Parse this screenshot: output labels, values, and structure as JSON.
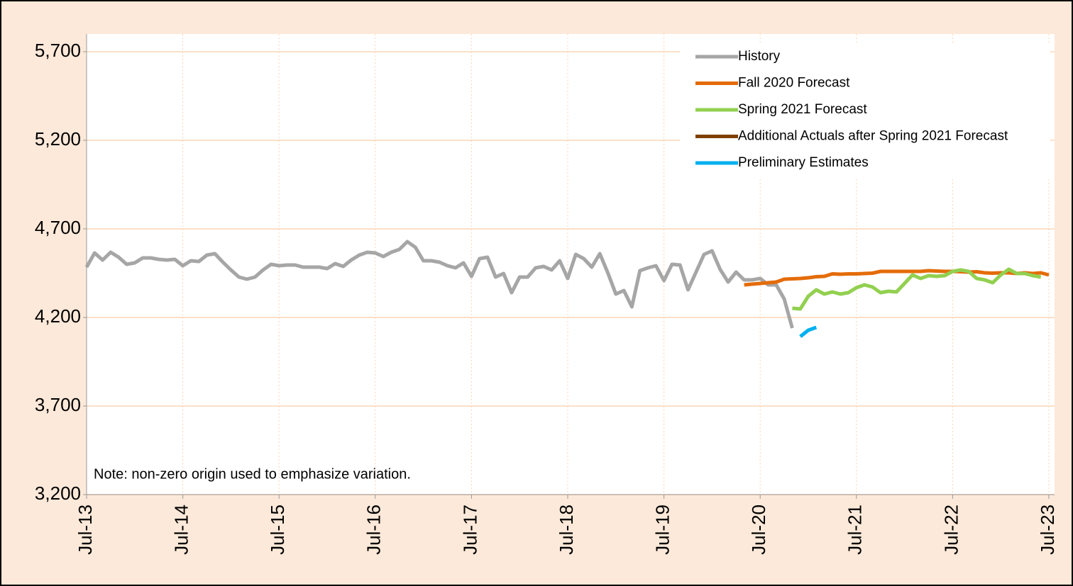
{
  "chart_data": {
    "type": "line",
    "annotation": "Note: non-zero origin used to emphasize variation.",
    "categories": [
      "Jul-13",
      null,
      null,
      null,
      null,
      null,
      null,
      null,
      null,
      null,
      null,
      null,
      "Jul-14",
      null,
      null,
      null,
      null,
      null,
      null,
      null,
      null,
      null,
      null,
      null,
      "Jul-15",
      null,
      null,
      null,
      null,
      null,
      null,
      null,
      null,
      null,
      null,
      null,
      "Jul-16",
      null,
      null,
      null,
      null,
      null,
      null,
      null,
      null,
      null,
      null,
      null,
      "Jul-17",
      null,
      null,
      null,
      null,
      null,
      null,
      null,
      null,
      null,
      null,
      null,
      "Jul-18",
      null,
      null,
      null,
      null,
      null,
      null,
      null,
      null,
      null,
      null,
      null,
      "Jul-19",
      null,
      null,
      null,
      null,
      null,
      null,
      null,
      null,
      null,
      null,
      null,
      "Jul-20",
      null,
      null,
      null,
      null,
      null,
      null,
      null,
      null,
      null,
      null,
      null,
      "Jul-21",
      null,
      null,
      null,
      null,
      null,
      null,
      null,
      null,
      null,
      null,
      null,
      "Jul-22",
      null,
      null,
      null,
      null,
      null,
      null,
      null,
      null,
      null,
      null,
      null,
      "Jul-23"
    ],
    "ylim": [
      3200,
      5800
    ],
    "yticks": [
      {
        "value": 3200,
        "label": "3,200"
      },
      {
        "value": 3700,
        "label": "3,700"
      },
      {
        "value": 4200,
        "label": "4,200"
      },
      {
        "value": 4700,
        "label": "4,700"
      },
      {
        "value": 5200,
        "label": "5,200"
      },
      {
        "value": 5700,
        "label": "5,700"
      }
    ],
    "grid": true,
    "legend": "upper right",
    "series": [
      {
        "name": "History",
        "color": "#a6a6a6",
        "values": [
          4484,
          4564,
          4524,
          4568,
          4540,
          4500,
          4508,
          4536,
          4536,
          4528,
          4524,
          4528,
          4492,
          4520,
          4516,
          4552,
          4560,
          4512,
          4468,
          4428,
          4416,
          4428,
          4468,
          4500,
          4492,
          4496,
          4496,
          4484,
          4484,
          4484,
          4476,
          4504,
          4488,
          4524,
          4552,
          4568,
          4564,
          4544,
          4568,
          4584,
          4628,
          4596,
          4520,
          4520,
          4512,
          4492,
          4480,
          4508,
          4432,
          4532,
          4540,
          4428,
          4448,
          4340,
          4428,
          4428,
          4480,
          4488,
          4468,
          4520,
          4420,
          4556,
          4532,
          4484,
          4560,
          4452,
          4332,
          4352,
          4260,
          4464,
          4480,
          4492,
          4408,
          4500,
          4496,
          4356,
          4456,
          4556,
          4576,
          4472,
          4400,
          4456,
          4412,
          4412,
          4420,
          4384,
          4384,
          4304,
          4140,
          null,
          null,
          null,
          null,
          null,
          null,
          null,
          null,
          null,
          null,
          null,
          null,
          null,
          null,
          null,
          null,
          null,
          null,
          null,
          null,
          null,
          null,
          null,
          null,
          null,
          null,
          null,
          null,
          null,
          null,
          null,
          null
        ]
      },
      {
        "name": "Fall 2020 Forecast",
        "color": "#e46c0a",
        "values": [
          null,
          null,
          null,
          null,
          null,
          null,
          null,
          null,
          null,
          null,
          null,
          null,
          null,
          null,
          null,
          null,
          null,
          null,
          null,
          null,
          null,
          null,
          null,
          null,
          null,
          null,
          null,
          null,
          null,
          null,
          null,
          null,
          null,
          null,
          null,
          null,
          null,
          null,
          null,
          null,
          null,
          null,
          null,
          null,
          null,
          null,
          null,
          null,
          null,
          null,
          null,
          null,
          null,
          null,
          null,
          null,
          null,
          null,
          null,
          null,
          null,
          null,
          null,
          null,
          null,
          null,
          null,
          null,
          null,
          null,
          null,
          null,
          null,
          null,
          null,
          null,
          null,
          null,
          null,
          null,
          null,
          null,
          4384,
          4388,
          4392,
          4396,
          4400,
          4416,
          4418,
          4420,
          4424,
          4430,
          4432,
          4446,
          4444,
          4446,
          4446,
          4448,
          4450,
          4460,
          4460,
          4460,
          4460,
          4460,
          4460,
          4464,
          4462,
          4460,
          4460,
          4458,
          4456,
          4458,
          4452,
          4450,
          4452,
          4452,
          4448,
          4452,
          4448,
          4452,
          4440
        ]
      },
      {
        "name": "Spring 2021 Forecast",
        "color": "#92d050",
        "values": [
          null,
          null,
          null,
          null,
          null,
          null,
          null,
          null,
          null,
          null,
          null,
          null,
          null,
          null,
          null,
          null,
          null,
          null,
          null,
          null,
          null,
          null,
          null,
          null,
          null,
          null,
          null,
          null,
          null,
          null,
          null,
          null,
          null,
          null,
          null,
          null,
          null,
          null,
          null,
          null,
          null,
          null,
          null,
          null,
          null,
          null,
          null,
          null,
          null,
          null,
          null,
          null,
          null,
          null,
          null,
          null,
          null,
          null,
          null,
          null,
          null,
          null,
          null,
          null,
          null,
          null,
          null,
          null,
          null,
          null,
          null,
          null,
          null,
          null,
          null,
          null,
          null,
          null,
          null,
          null,
          null,
          null,
          null,
          null,
          null,
          null,
          null,
          null,
          4252,
          4248,
          4320,
          4356,
          4332,
          4344,
          4332,
          4340,
          4368,
          4384,
          4372,
          4340,
          4348,
          4344,
          4392,
          4440,
          4420,
          4436,
          4432,
          4436,
          4460,
          4468,
          4460,
          4420,
          4412,
          4396,
          4440,
          4472,
          4448,
          4448,
          4436,
          4428,
          null
        ]
      },
      {
        "name": "Additional Actuals after Spring 2021 Forecast",
        "color": "#7f3f00",
        "values": [
          null,
          null,
          null,
          null,
          null,
          null,
          null,
          null,
          null,
          null,
          null,
          null,
          null,
          null,
          null,
          null,
          null,
          null,
          null,
          null,
          null,
          null,
          null,
          null,
          null,
          null,
          null,
          null,
          null,
          null,
          null,
          null,
          null,
          null,
          null,
          null,
          null,
          null,
          null,
          null,
          null,
          null,
          null,
          null,
          null,
          null,
          null,
          null,
          null,
          null,
          null,
          null,
          null,
          null,
          null,
          null,
          null,
          null,
          null,
          null,
          null,
          null,
          null,
          null,
          null,
          null,
          null,
          null,
          null,
          null,
          null,
          null,
          null,
          null,
          null,
          null,
          null,
          null,
          null,
          null,
          null,
          null,
          null,
          null,
          null,
          null,
          null,
          null,
          null,
          null,
          null,
          null,
          null,
          null,
          null,
          null,
          null,
          null,
          null,
          null,
          null,
          null,
          null,
          null,
          null,
          null,
          null,
          null,
          null,
          null,
          null,
          null,
          null,
          null,
          null,
          null,
          null,
          null,
          null,
          null,
          null
        ]
      },
      {
        "name": "Preliminary Estimates",
        "color": "#00b0f0",
        "values": [
          null,
          null,
          null,
          null,
          null,
          null,
          null,
          null,
          null,
          null,
          null,
          null,
          null,
          null,
          null,
          null,
          null,
          null,
          null,
          null,
          null,
          null,
          null,
          null,
          null,
          null,
          null,
          null,
          null,
          null,
          null,
          null,
          null,
          null,
          null,
          null,
          null,
          null,
          null,
          null,
          null,
          null,
          null,
          null,
          null,
          null,
          null,
          null,
          null,
          null,
          null,
          null,
          null,
          null,
          null,
          null,
          null,
          null,
          null,
          null,
          null,
          null,
          null,
          null,
          null,
          null,
          null,
          null,
          null,
          null,
          null,
          null,
          null,
          null,
          null,
          null,
          null,
          null,
          null,
          null,
          null,
          null,
          null,
          null,
          null,
          null,
          null,
          null,
          null,
          4092,
          4128,
          4144,
          null,
          null,
          null,
          null,
          null,
          null,
          null,
          null,
          null,
          null,
          null,
          null,
          null,
          null,
          null,
          null,
          null,
          null,
          null,
          null,
          null,
          null,
          null,
          null,
          null,
          null,
          null,
          null,
          null
        ]
      }
    ]
  }
}
